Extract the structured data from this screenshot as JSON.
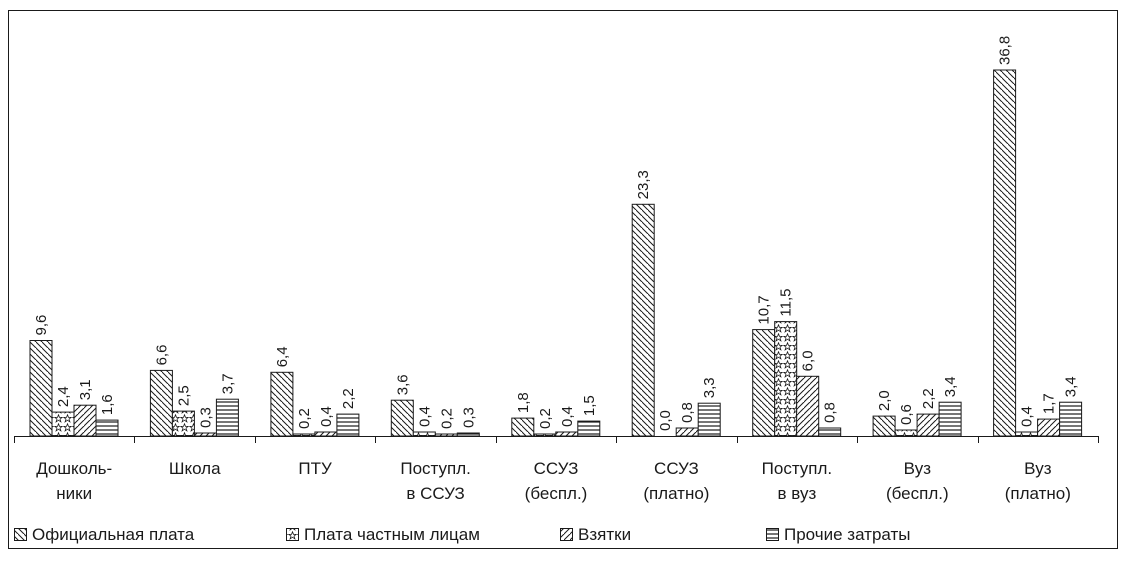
{
  "chart_data": {
    "type": "bar",
    "categories": [
      [
        "Дошколь-",
        "ники"
      ],
      [
        "Школа"
      ],
      [
        "ПТУ"
      ],
      [
        "Поступл.",
        "в ССУЗ"
      ],
      [
        "ССУЗ",
        "(беспл.)"
      ],
      [
        "ССУЗ",
        "(платно)"
      ],
      [
        "Поступл.",
        "в вуз"
      ],
      [
        "Вуз",
        "(беспл.)"
      ],
      [
        "Вуз",
        "(платно)"
      ]
    ],
    "series": [
      {
        "name": "Официальная плата",
        "pattern": "backslash",
        "values": [
          9.6,
          6.6,
          6.4,
          3.6,
          1.8,
          23.3,
          10.7,
          2.0,
          36.8
        ],
        "labels": [
          "9,6",
          "6,6",
          "6,4",
          "3,6",
          "1,8",
          "23,3",
          "10,7",
          "2,0",
          "36,8"
        ]
      },
      {
        "name": "Плата частным лицам",
        "pattern": "stars",
        "values": [
          2.4,
          2.5,
          0.2,
          0.4,
          0.2,
          0.0,
          11.5,
          0.6,
          0.4
        ],
        "labels": [
          "2,4",
          "2,5",
          "0,2",
          "0,4",
          "0,2",
          "0,0",
          "11,5",
          "0,6",
          "0,4"
        ]
      },
      {
        "name": "Взятки",
        "pattern": "slash",
        "values": [
          3.1,
          0.3,
          0.4,
          0.2,
          0.4,
          0.8,
          6.0,
          2.2,
          1.7
        ],
        "labels": [
          "3,1",
          "0,3",
          "0,4",
          "0,2",
          "0,4",
          "0,8",
          "6,0",
          "2,2",
          "1,7"
        ]
      },
      {
        "name": "Прочие затраты",
        "pattern": "horizontal",
        "values": [
          1.6,
          3.7,
          2.2,
          0.3,
          1.5,
          3.3,
          0.8,
          3.4,
          3.4
        ],
        "labels": [
          "1,6",
          "3,7",
          "2,2",
          "0,3",
          "1,5",
          "3,3",
          "0,8",
          "3,4",
          "3,4"
        ]
      }
    ],
    "ylim": [
      0,
      36.8
    ],
    "grid": false,
    "legend_position": "bottom"
  },
  "colors": {
    "stroke": "#1a1a1a",
    "background": "#ffffff"
  }
}
